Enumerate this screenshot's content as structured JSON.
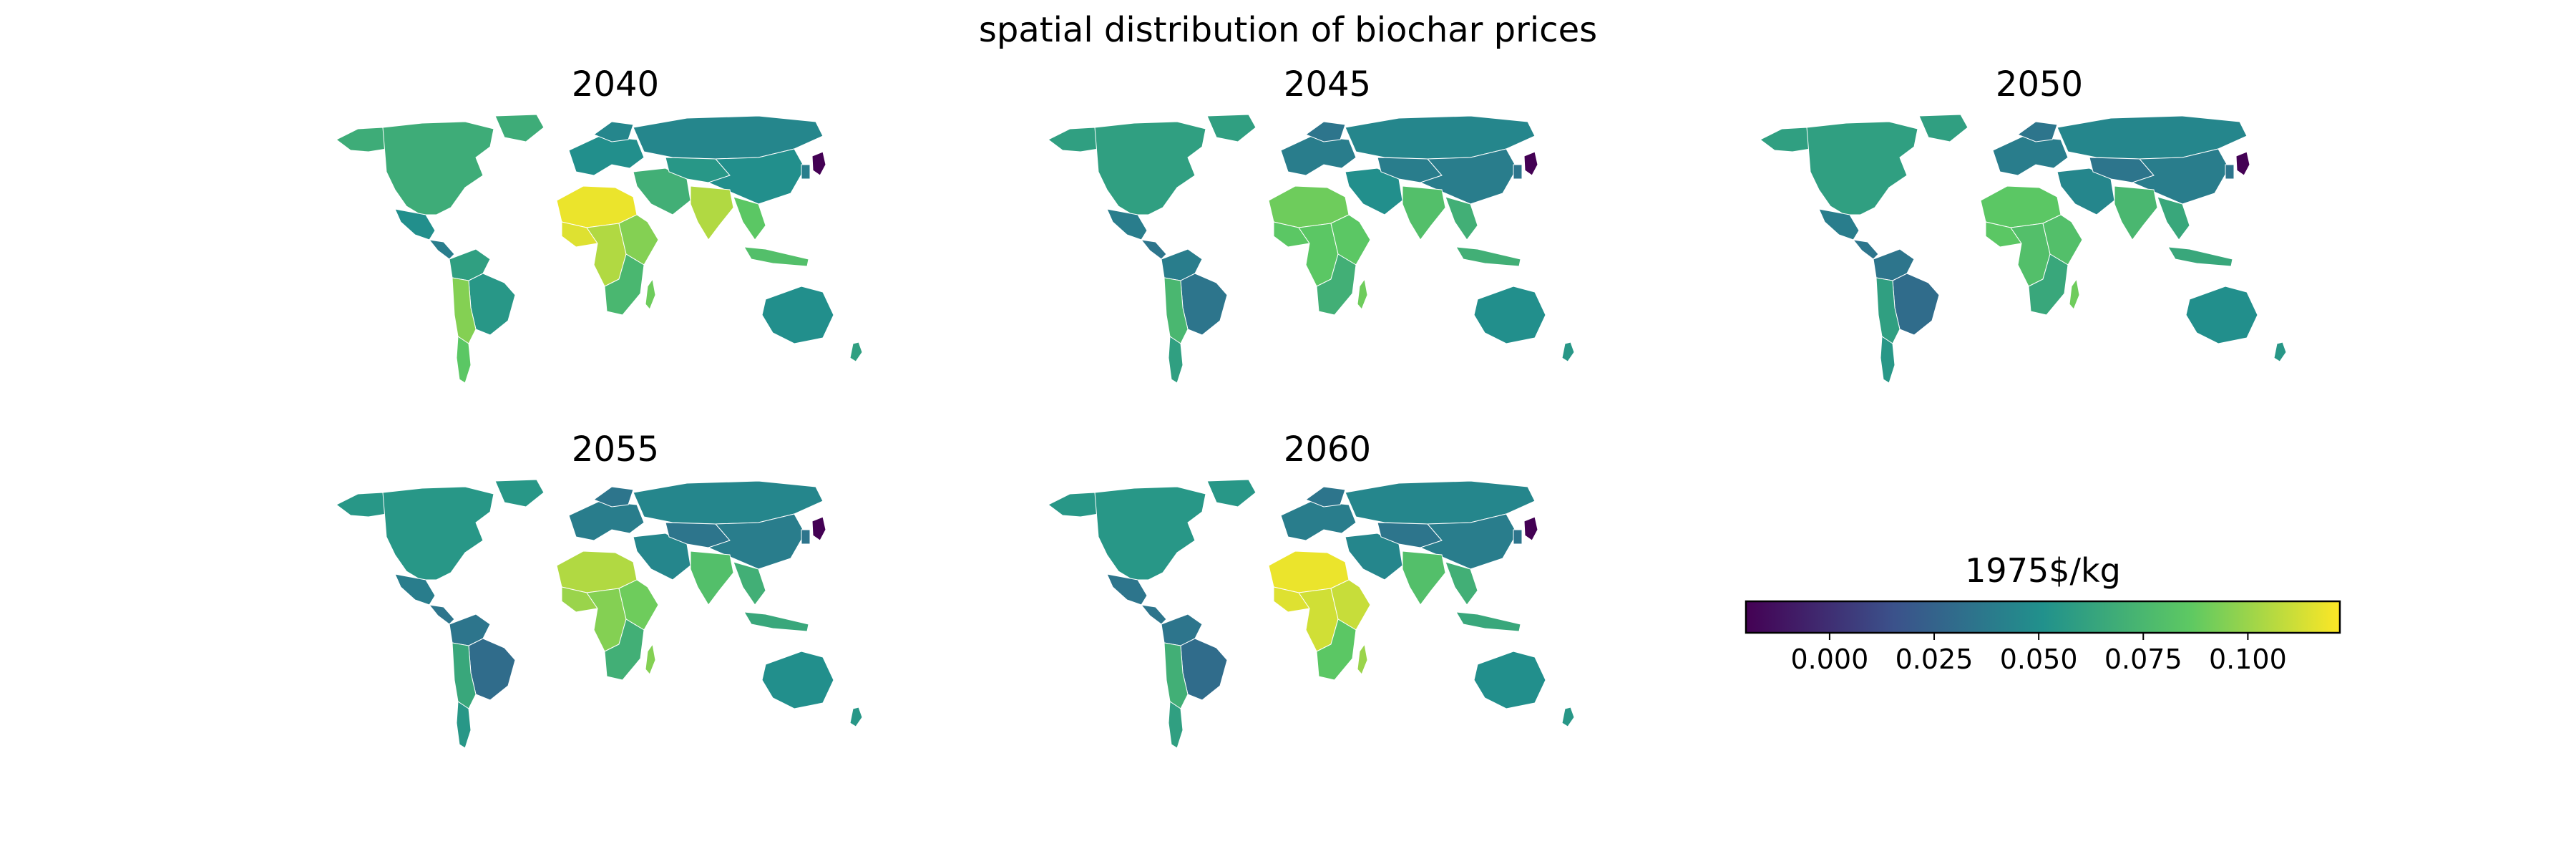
{
  "figure": {
    "title": "spatial distribution of biochar prices"
  },
  "colormap": {
    "name": "viridis",
    "stops": [
      "#440154",
      "#3b528b",
      "#21918c",
      "#5ec962",
      "#fde725"
    ],
    "vmin": -0.02,
    "vmax": 0.122
  },
  "colorbar": {
    "title": "1975$/kg",
    "ticks": [
      0.0,
      0.025,
      0.05,
      0.075,
      0.1
    ],
    "tick_labels": [
      "0.000",
      "0.025",
      "0.050",
      "0.075",
      "0.100"
    ]
  },
  "panels": [
    {
      "year": "2040",
      "regions": {
        "north_america": 0.068,
        "greenland": 0.068,
        "alaska": 0.068,
        "mexico": 0.05,
        "central_america": 0.04,
        "south_america_north": 0.06,
        "brazil": 0.055,
        "south_america_south": 0.095,
        "patagonia": 0.085,
        "north_africa": 0.118,
        "west_africa": 0.115,
        "east_africa": 0.095,
        "central_africa": 0.105,
        "southern_africa": 0.075,
        "madagascar": 0.09,
        "europe": 0.05,
        "scandinavia": 0.045,
        "russia": 0.045,
        "middle_east": 0.07,
        "central_asia": 0.055,
        "china": 0.05,
        "india": 0.105,
        "southeast_asia": 0.085,
        "korea": 0.04,
        "japan": -0.02,
        "indonesia": 0.08,
        "australia": 0.05,
        "new_zealand": 0.06
      }
    },
    {
      "year": "2045",
      "regions": {
        "north_america": 0.06,
        "greenland": 0.06,
        "alaska": 0.06,
        "mexico": 0.04,
        "central_america": 0.035,
        "south_america_north": 0.04,
        "brazil": 0.035,
        "south_america_south": 0.075,
        "patagonia": 0.06,
        "north_africa": 0.09,
        "west_africa": 0.085,
        "east_africa": 0.085,
        "central_africa": 0.085,
        "southern_africa": 0.07,
        "madagascar": 0.09,
        "europe": 0.04,
        "scandinavia": 0.035,
        "russia": 0.045,
        "middle_east": 0.05,
        "central_asia": 0.04,
        "china": 0.04,
        "india": 0.08,
        "southeast_asia": 0.07,
        "korea": 0.035,
        "japan": -0.02,
        "indonesia": 0.07,
        "australia": 0.05,
        "new_zealand": 0.055
      }
    },
    {
      "year": "2050",
      "regions": {
        "north_america": 0.06,
        "greenland": 0.06,
        "alaska": 0.06,
        "mexico": 0.04,
        "central_america": 0.035,
        "south_america_north": 0.035,
        "brazil": 0.03,
        "south_america_south": 0.06,
        "patagonia": 0.055,
        "north_africa": 0.085,
        "west_africa": 0.085,
        "east_africa": 0.08,
        "central_africa": 0.08,
        "southern_africa": 0.065,
        "madagascar": 0.09,
        "europe": 0.04,
        "scandinavia": 0.035,
        "russia": 0.045,
        "middle_east": 0.045,
        "central_asia": 0.035,
        "china": 0.04,
        "india": 0.075,
        "southeast_asia": 0.065,
        "korea": 0.035,
        "japan": -0.02,
        "indonesia": 0.065,
        "australia": 0.05,
        "new_zealand": 0.055
      }
    },
    {
      "year": "2055",
      "regions": {
        "north_america": 0.055,
        "greenland": 0.055,
        "alaska": 0.055,
        "mexico": 0.04,
        "central_america": 0.035,
        "south_america_north": 0.035,
        "brazil": 0.03,
        "south_america_south": 0.065,
        "patagonia": 0.055,
        "north_africa": 0.105,
        "west_africa": 0.1,
        "east_africa": 0.09,
        "central_africa": 0.095,
        "southern_africa": 0.07,
        "madagascar": 0.095,
        "europe": 0.04,
        "scandinavia": 0.035,
        "russia": 0.045,
        "middle_east": 0.045,
        "central_asia": 0.035,
        "china": 0.04,
        "india": 0.08,
        "southeast_asia": 0.07,
        "korea": 0.035,
        "japan": -0.02,
        "indonesia": 0.065,
        "australia": 0.05,
        "new_zealand": 0.055
      }
    },
    {
      "year": "2060",
      "regions": {
        "north_america": 0.055,
        "greenland": 0.055,
        "alaska": 0.055,
        "mexico": 0.035,
        "central_america": 0.035,
        "south_america_north": 0.035,
        "brazil": 0.03,
        "south_america_south": 0.07,
        "patagonia": 0.06,
        "north_africa": 0.118,
        "west_africa": 0.115,
        "east_africa": 0.11,
        "central_africa": 0.112,
        "southern_africa": 0.085,
        "madagascar": 0.1,
        "europe": 0.04,
        "scandinavia": 0.035,
        "russia": 0.045,
        "middle_east": 0.045,
        "central_asia": 0.035,
        "china": 0.04,
        "india": 0.08,
        "southeast_asia": 0.07,
        "korea": 0.035,
        "japan": -0.02,
        "indonesia": 0.065,
        "australia": 0.05,
        "new_zealand": 0.055
      }
    }
  ]
}
